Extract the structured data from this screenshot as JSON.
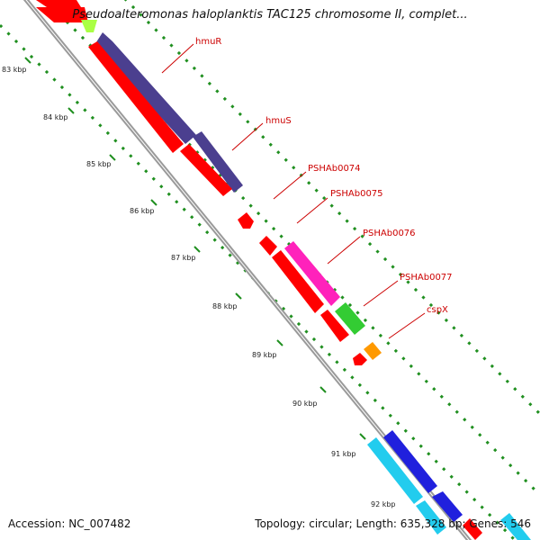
{
  "title": "Pseudoalteromonas haloplanktis TAC125 chromosome II, complet...",
  "footer": {
    "accession": "Accession: NC_007482",
    "summary": "Topology: circular; Length: 635,328 bp; Genes: 546"
  },
  "ticks": [
    "83 kbp",
    "84 kbp",
    "85 kbp",
    "86 kbp",
    "87 kbp",
    "88 kbp",
    "89 kbp",
    "90 kbp",
    "91 kbp",
    "92 kbp"
  ],
  "gene_labels": [
    "hmuR",
    "hmuS",
    "PSHAb0074",
    "PSHAb0075",
    "PSHAb0076",
    "PSHAb0077",
    "cspX"
  ],
  "colors": {
    "backbone": "#888888",
    "tick": "#1f8f1f",
    "cds": "#ff0000",
    "hmuR": "#4b3f8f",
    "hmuS": "#4b3f8f",
    "PSHAb0076": "#ff22bb",
    "PSHAb0077": "#33cc33",
    "cspX": "#ff9900",
    "blue": "#2020dd",
    "cyan": "#22ccee",
    "lime": "#aaff44",
    "label": "#cc0000"
  }
}
